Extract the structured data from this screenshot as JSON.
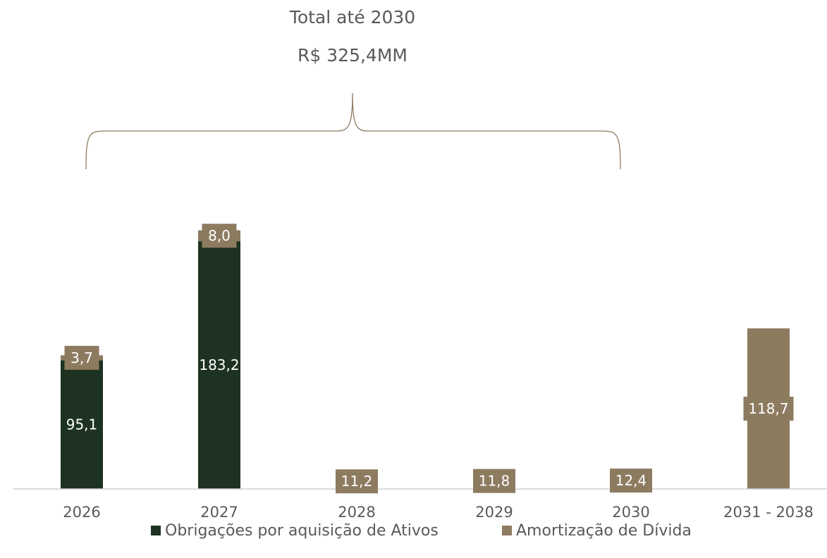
{
  "header": {
    "title": "Total até 2030",
    "total": "R$ 325,4MM"
  },
  "colors": {
    "obrigacoes": "#1d3221",
    "amortizacao": "#8d7b60",
    "axis": "#d0d0d0",
    "brace": "#8d7b60",
    "tick_text": "#595959",
    "label_text": "#ffffff"
  },
  "chart_data": {
    "type": "bar",
    "stacked": true,
    "categories": [
      "2026",
      "2027",
      "2028",
      "2029",
      "2030",
      "2031 - 2038"
    ],
    "series": [
      {
        "name": "Obrigações por aquisição de Ativos",
        "values": [
          95.1,
          183.2,
          null,
          null,
          null,
          null
        ],
        "labels": [
          "95,1",
          "183,2",
          "",
          "",
          "",
          ""
        ]
      },
      {
        "name": "Amortização de Dívida",
        "values": [
          3.7,
          8.0,
          11.2,
          11.8,
          12.4,
          118.7
        ],
        "labels": [
          "3,7",
          "8,0",
          "11,2",
          "11,8",
          "12,4",
          "118,7"
        ]
      }
    ],
    "legend": "bottom",
    "grid": false,
    "bracket_covers": [
      "2026",
      "2027",
      "2028",
      "2029",
      "2030"
    ]
  }
}
